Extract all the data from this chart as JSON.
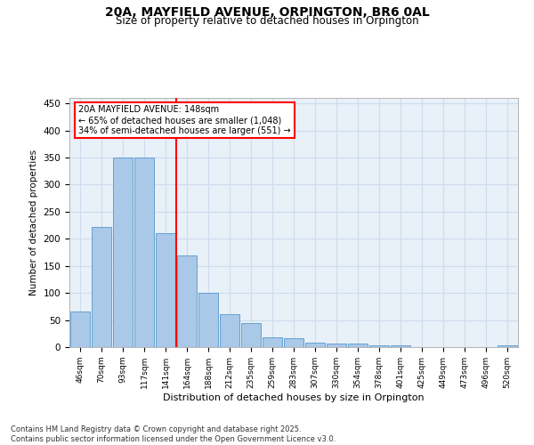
{
  "title": "20A, MAYFIELD AVENUE, ORPINGTON, BR6 0AL",
  "subtitle": "Size of property relative to detached houses in Orpington",
  "xlabel": "Distribution of detached houses by size in Orpington",
  "ylabel": "Number of detached properties",
  "bar_labels": [
    "46sqm",
    "70sqm",
    "93sqm",
    "117sqm",
    "141sqm",
    "164sqm",
    "188sqm",
    "212sqm",
    "235sqm",
    "259sqm",
    "283sqm",
    "307sqm",
    "330sqm",
    "354sqm",
    "378sqm",
    "401sqm",
    "425sqm",
    "449sqm",
    "473sqm",
    "496sqm",
    "520sqm"
  ],
  "bar_values": [
    65,
    222,
    350,
    350,
    210,
    170,
    100,
    60,
    45,
    18,
    16,
    8,
    6,
    6,
    4,
    4,
    0,
    0,
    0,
    0,
    3
  ],
  "bar_color": "#aac8e8",
  "bar_edge_color": "#5599cc",
  "vline_x": 4.5,
  "vline_color": "red",
  "annotation_text": "20A MAYFIELD AVENUE: 148sqm\n← 65% of detached houses are smaller (1,048)\n34% of semi-detached houses are larger (551) →",
  "annotation_box_color": "red",
  "ylim": [
    0,
    460
  ],
  "yticks": [
    0,
    50,
    100,
    150,
    200,
    250,
    300,
    350,
    400,
    450
  ],
  "grid_color": "#ccddee",
  "bg_color": "#e8f0f8",
  "footer": "Contains HM Land Registry data © Crown copyright and database right 2025.\nContains public sector information licensed under the Open Government Licence v3.0."
}
